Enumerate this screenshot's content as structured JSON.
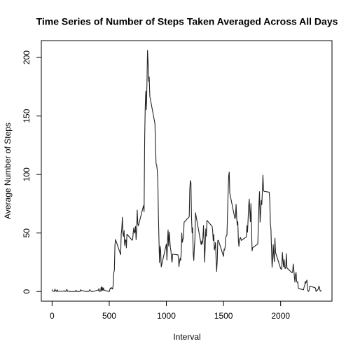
{
  "chart_data": {
    "type": "line",
    "title": "Time Series of Number of Steps Taken Averaged Across All Days",
    "x_label": "Interval",
    "y_label": "Average Number of Steps",
    "color": "#222222",
    "xlim": [
      -94.2,
      2449.2
    ],
    "ylim": [
      -8.25,
      214.42
    ],
    "xticks": [
      0,
      500,
      1000,
      1500,
      2000
    ],
    "yticks": [
      0,
      50,
      100,
      150,
      200
    ],
    "x": [
      0,
      5,
      10,
      15,
      20,
      25,
      30,
      35,
      40,
      45,
      50,
      55,
      100,
      105,
      110,
      115,
      120,
      125,
      130,
      135,
      140,
      145,
      150,
      155,
      200,
      205,
      210,
      215,
      220,
      225,
      230,
      235,
      240,
      245,
      250,
      255,
      300,
      305,
      310,
      315,
      320,
      325,
      330,
      335,
      340,
      345,
      350,
      355,
      400,
      405,
      410,
      415,
      420,
      425,
      430,
      435,
      440,
      445,
      450,
      455,
      500,
      505,
      510,
      515,
      520,
      525,
      530,
      535,
      540,
      545,
      550,
      555,
      600,
      605,
      610,
      615,
      620,
      625,
      630,
      635,
      640,
      645,
      650,
      655,
      700,
      705,
      710,
      715,
      720,
      725,
      730,
      735,
      740,
      745,
      750,
      755,
      800,
      805,
      810,
      815,
      820,
      825,
      830,
      835,
      840,
      845,
      850,
      855,
      900,
      905,
      910,
      915,
      920,
      925,
      930,
      935,
      940,
      945,
      950,
      955,
      1000,
      1005,
      1010,
      1015,
      1020,
      1025,
      1030,
      1035,
      1040,
      1045,
      1050,
      1055,
      1100,
      1105,
      1110,
      1115,
      1120,
      1125,
      1130,
      1135,
      1140,
      1145,
      1150,
      1155,
      1200,
      1205,
      1210,
      1215,
      1220,
      1225,
      1230,
      1235,
      1240,
      1245,
      1250,
      1255,
      1300,
      1305,
      1310,
      1315,
      1320,
      1325,
      1330,
      1335,
      1340,
      1345,
      1350,
      1355,
      1400,
      1405,
      1410,
      1415,
      1420,
      1425,
      1430,
      1435,
      1440,
      1445,
      1450,
      1455,
      1500,
      1505,
      1510,
      1515,
      1520,
      1525,
      1530,
      1535,
      1540,
      1545,
      1550,
      1555,
      1600,
      1605,
      1610,
      1615,
      1620,
      1625,
      1630,
      1635,
      1640,
      1645,
      1650,
      1655,
      1700,
      1705,
      1710,
      1715,
      1720,
      1725,
      1730,
      1735,
      1740,
      1745,
      1750,
      1755,
      1800,
      1805,
      1810,
      1815,
      1820,
      1825,
      1830,
      1835,
      1840,
      1845,
      1850,
      1855,
      1900,
      1905,
      1910,
      1915,
      1920,
      1925,
      1930,
      1935,
      1940,
      1945,
      1950,
      1955,
      2000,
      2005,
      2010,
      2015,
      2020,
      2025,
      2030,
      2035,
      2040,
      2045,
      2050,
      2055,
      2100,
      2105,
      2110,
      2115,
      2120,
      2125,
      2130,
      2135,
      2140,
      2145,
      2150,
      2155,
      2200,
      2205,
      2210,
      2215,
      2220,
      2225,
      2230,
      2235,
      2240,
      2245,
      2250,
      2255,
      2300,
      2305,
      2310,
      2315,
      2320,
      2325,
      2330,
      2335,
      2340,
      2345,
      2350,
      2355
    ],
    "values": [
      1.72,
      0.34,
      0.13,
      0.15,
      0.08,
      2.09,
      0.53,
      0.87,
      0,
      1.47,
      0.3,
      0.13,
      0.32,
      0.68,
      0.15,
      0.34,
      0,
      1.11,
      1.83,
      0.17,
      0.17,
      0.38,
      0.26,
      0,
      0,
      0,
      1.13,
      0,
      0,
      0.13,
      0,
      0.23,
      0,
      0,
      1.55,
      0.94,
      0,
      0,
      0,
      0,
      0.21,
      0.62,
      1.62,
      0.58,
      0.49,
      0.08,
      0,
      0,
      1.19,
      0.94,
      2.57,
      0,
      0.34,
      0.36,
      4.11,
      0.66,
      3.49,
      0.83,
      3.11,
      1.11,
      0,
      1.57,
      3.0,
      2.25,
      3.32,
      2.96,
      2.09,
      6.06,
      16.02,
      18.34,
      39.45,
      44.49,
      31.49,
      49.26,
      53.77,
      63.45,
      49.96,
      47.08,
      52.15,
      39.34,
      44.02,
      44.17,
      37.36,
      49.04,
      43.81,
      44.38,
      50.51,
      54.51,
      49.92,
      50.98,
      55.68,
      44.32,
      52.26,
      69.55,
      57.85,
      56.15,
      73.38,
      68.21,
      129.43,
      157.53,
      171.15,
      155.4,
      177.3,
      206.17,
      195.92,
      179.57,
      183.4,
      167.02,
      143.45,
      124.04,
      109.11,
      108.11,
      103.72,
      95.97,
      66.21,
      45.23,
      24.79,
      38.75,
      34.98,
      21.06,
      40.57,
      26.98,
      42.42,
      52.66,
      38.92,
      50.79,
      44.28,
      37.42,
      34.7,
      28.34,
      25.09,
      31.94,
      31.36,
      29.68,
      21.32,
      25.55,
      28.38,
      26.47,
      33.43,
      49.98,
      42.04,
      44.6,
      46.04,
      59.19,
      63.87,
      87.7,
      94.85,
      92.77,
      63.4,
      50.17,
      54.47,
      32.42,
      26.53,
      37.74,
      45.06,
      67.28,
      42.34,
      39.88,
      43.26,
      40.98,
      46.25,
      56.43,
      42.75,
      25.13,
      39.96,
      53.55,
      47.32,
      60.81,
      55.75,
      51.96,
      43.58,
      48.7,
      35.47,
      37.55,
      41.85,
      27.51,
      17.11,
      26.08,
      43.62,
      43.77,
      30.02,
      36.08,
      35.49,
      38.85,
      45.96,
      47.75,
      48.13,
      65.32,
      82.91,
      98.66,
      102.11,
      83.96,
      62.13,
      64.13,
      74.55,
      63.17,
      56.91,
      59.77,
      43.87,
      38.57,
      44.66,
      45.45,
      46.21,
      43.68,
      46.62,
      56.3,
      50.72,
      61.23,
      72.72,
      78.94,
      68.94,
      59.66,
      75.09,
      56.51,
      34.77,
      37.45,
      40.68,
      58.02,
      74.7,
      85.32,
      59.26,
      67.77,
      77.7,
      74.25,
      85.34,
      99.45,
      86.58,
      85.6,
      84.87,
      77.83,
      58.04,
      53.36,
      36.32,
      20.72,
      27.4,
      40.02,
      30.21,
      25.55,
      45.66,
      33.53,
      19.62,
      19.02,
      19.34,
      33.34,
      26.81,
      21.17,
      27.3,
      21.34,
      19.55,
      21.32,
      32.3,
      20.15,
      15.94,
      17.23,
      23.45,
      19.25,
      12.45,
      8.02,
      14.66,
      16.3,
      8.68,
      7.79,
      8.13,
      2.62,
      1.45,
      3.68,
      4.81,
      8.51,
      7.08,
      8.7,
      9.75,
      2.21,
      0.32,
      0.11,
      1.6,
      4.6,
      3.3,
      2.85,
      0,
      0.83,
      0.96,
      1.58,
      2.6,
      4.7,
      3.3,
      0.64,
      0.23,
      1.08
    ]
  }
}
